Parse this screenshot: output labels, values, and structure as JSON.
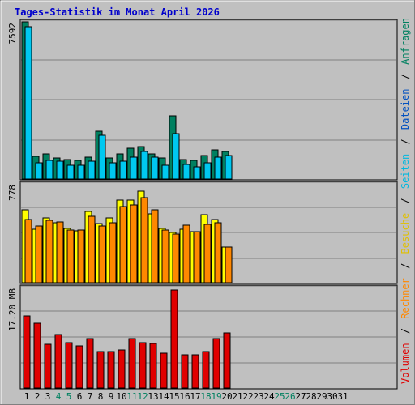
{
  "title": "Tages-Statistik im Monat April 2026",
  "colors": {
    "background": "#c0c0c0",
    "title": "#0000cc",
    "anfragen": "#008060",
    "dateien": "#00c8f0",
    "seiten": "#00c8f0",
    "besuche": "#ffff00",
    "rechner": "#ff8800",
    "volumen": "#e00000",
    "weekend_label": "#008060",
    "label": "#000000",
    "separator": "#000000"
  },
  "chart_data": [
    {
      "type": "bar",
      "name": "requests-panel",
      "ymax_label": "7592",
      "ylim": [
        0,
        7592
      ],
      "categories": [
        "1",
        "2",
        "3",
        "4",
        "5",
        "6",
        "7",
        "8",
        "9",
        "10",
        "11",
        "12",
        "13",
        "14",
        "15",
        "16",
        "17",
        "18",
        "19",
        "20",
        "21",
        "22",
        "23",
        "24",
        "25",
        "26",
        "27",
        "28",
        "29",
        "30",
        "31"
      ],
      "weekend_days": [
        "4",
        "5",
        "11",
        "12",
        "18",
        "19",
        "25",
        "26"
      ],
      "series": [
        {
          "name": "Anfragen",
          "values": [
            7592,
            1100,
            1200,
            1000,
            950,
            900,
            1050,
            2300,
            1000,
            1200,
            1500,
            1550,
            1200,
            1000,
            3050,
            950,
            900,
            1150,
            1400,
            1350,
            0,
            0,
            0,
            0,
            0,
            0,
            0,
            0,
            0,
            0,
            0
          ]
        },
        {
          "name": "Dateien",
          "values": [
            7350,
            800,
            900,
            850,
            650,
            650,
            850,
            2100,
            800,
            850,
            1050,
            1350,
            1050,
            650,
            2200,
            700,
            600,
            800,
            1050,
            1150,
            0,
            0,
            0,
            0,
            0,
            0,
            0,
            0,
            0,
            0,
            0
          ]
        }
      ]
    },
    {
      "type": "bar",
      "name": "visits-panel",
      "ymax_label": "778",
      "ylim": [
        0,
        778
      ],
      "series": [
        {
          "name": "Seiten",
          "values": [
            0,
            0,
            0,
            0,
            0,
            0,
            0,
            0,
            0,
            0,
            0,
            0,
            0,
            0,
            0,
            0,
            0,
            0,
            0,
            0,
            0,
            0,
            0,
            0,
            0,
            0,
            0,
            0,
            0,
            0,
            0
          ]
        },
        {
          "name": "Besuche",
          "values": [
            575,
            420,
            510,
            470,
            425,
            410,
            560,
            465,
            510,
            650,
            650,
            720,
            545,
            430,
            395,
            420,
            400,
            535,
            495,
            280,
            0,
            0,
            0,
            0,
            0,
            0,
            0,
            0,
            0,
            0,
            0
          ]
        },
        {
          "name": "Rechner",
          "values": [
            500,
            445,
            490,
            480,
            415,
            415,
            520,
            445,
            475,
            600,
            610,
            670,
            575,
            415,
            385,
            450,
            400,
            460,
            470,
            280,
            0,
            0,
            0,
            0,
            0,
            0,
            0,
            0,
            0,
            0,
            0
          ]
        }
      ]
    },
    {
      "type": "bar",
      "name": "volume-panel",
      "ymax_label": "17.20 MB",
      "ylim": [
        0,
        17.2
      ],
      "series": [
        {
          "name": "Volumen",
          "values": [
            12.3,
            11.1,
            7.5,
            9.1,
            7.8,
            7.2,
            8.5,
            6.3,
            6.2,
            6.5,
            8.5,
            7.8,
            7.6,
            5.9,
            16.8,
            5.7,
            5.7,
            6.2,
            8.4,
            9.4,
            0,
            0,
            0,
            0,
            0,
            0,
            0,
            0,
            0,
            0,
            0
          ]
        }
      ]
    }
  ],
  "legend": {
    "volumen": "Volumen",
    "rechner": "Rechner",
    "besuche": "Besuche",
    "seiten": "Seiten",
    "dateien": "Dateien",
    "anfragen": "Anfragen",
    "sep": "/"
  }
}
